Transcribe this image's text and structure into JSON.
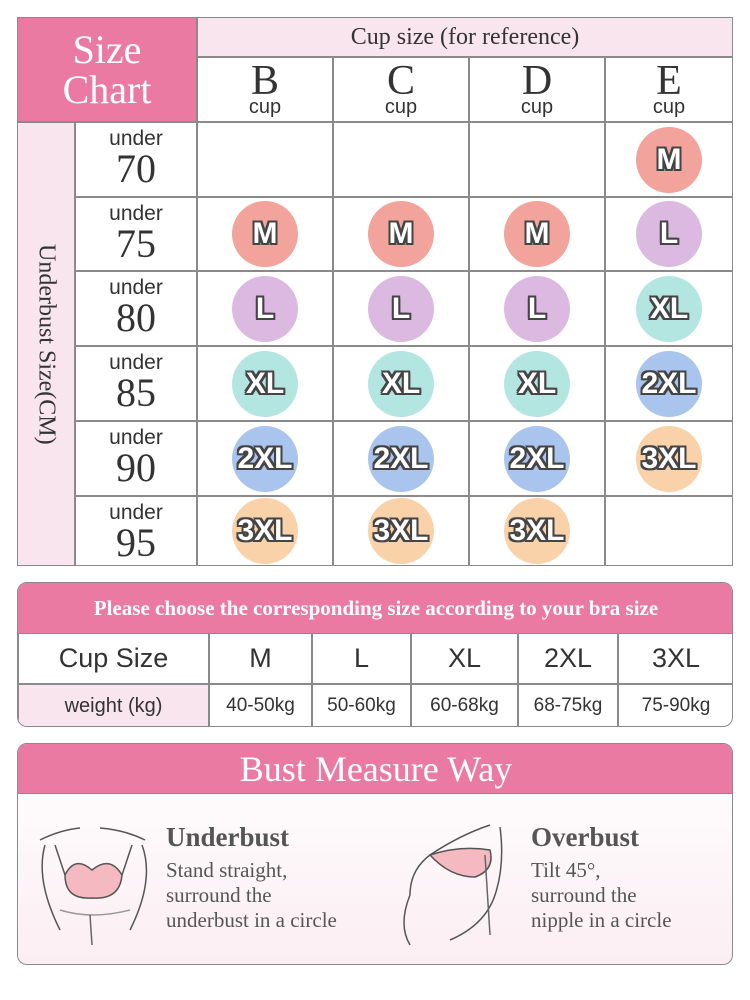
{
  "size_chart": {
    "title": [
      "Size",
      "Chart"
    ],
    "cup_header": "Cup size (for reference)",
    "cups": [
      {
        "letter": "B",
        "label": "cup"
      },
      {
        "letter": "C",
        "label": "cup"
      },
      {
        "letter": "D",
        "label": "cup"
      },
      {
        "letter": "E",
        "label": "cup"
      }
    ],
    "underbust_label": "Underbust Size(CM)",
    "rows": [
      {
        "label": "under",
        "value": "70",
        "sizes": [
          null,
          null,
          null,
          "M"
        ]
      },
      {
        "label": "under",
        "value": "75",
        "sizes": [
          "M",
          "M",
          "M",
          "L"
        ]
      },
      {
        "label": "under",
        "value": "80",
        "sizes": [
          "L",
          "L",
          "L",
          "XL"
        ]
      },
      {
        "label": "under",
        "value": "85",
        "sizes": [
          "XL",
          "XL",
          "XL",
          "2XL"
        ]
      },
      {
        "label": "under",
        "value": "90",
        "sizes": [
          "2XL",
          "2XL",
          "2XL",
          "3XL"
        ]
      },
      {
        "label": "under",
        "value": "95",
        "sizes": [
          "3XL",
          "3XL",
          "3XL",
          null
        ]
      }
    ]
  },
  "size_table": {
    "title": "Please choose the corresponding size according to your bra size",
    "header": "Cup Size",
    "sizes": [
      "M",
      "L",
      "XL",
      "2XL",
      "3XL"
    ],
    "row_label": "weight (kg)",
    "weights": [
      "40-50kg",
      "50-60kg",
      "60-68kg",
      "68-75kg",
      "75-90kg"
    ]
  },
  "measure": {
    "title": "Bust Measure Way",
    "methods": [
      {
        "title": "Underbust",
        "lines": [
          "Stand straight,",
          "surround the",
          "underbust in a circle"
        ]
      },
      {
        "title": "Overbust",
        "lines": [
          "Tilt 45°,",
          "surround the",
          "nipple in a circle"
        ]
      }
    ]
  }
}
